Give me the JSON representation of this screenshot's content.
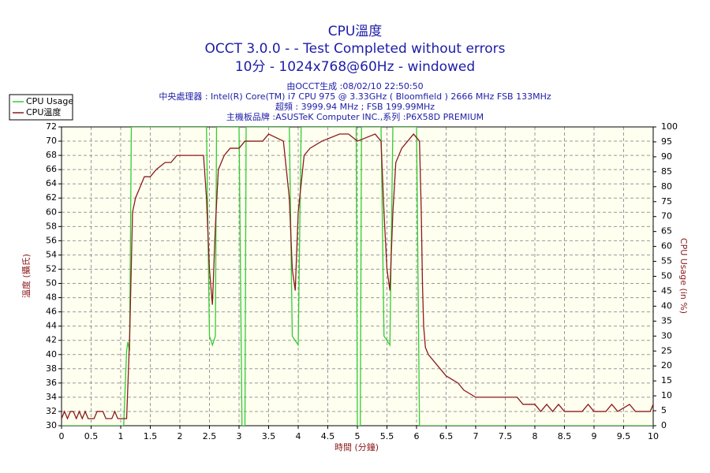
{
  "chart_data": {
    "type": "line",
    "title": "CPU溫度",
    "subtitle": [
      "OCCT 3.0.0 -  - Test Completed without errors",
      "10分 - 1024x768@60Hz - windowed"
    ],
    "info": [
      "由OCCT生成 :08/02/10 22:50:50",
      "中央處理器 : Intel(R) Core(TM) i7 CPU 975 @ 3.33GHz ( Bloomfield ) 2666 MHz FSB 133MHz",
      "超頻 : 3999.94 MHz ; FSB 199.99MHz",
      "主機板品牌 :ASUSTeK Computer INC.,系列 :P6X58D PREMIUM"
    ],
    "x_label": "時間 (分鐘)",
    "y_label": "溫度 (攝氏)",
    "y2_label": "CPU Usage (in %)",
    "xlim": [
      0,
      10
    ],
    "xticks": [
      0,
      0.5,
      1,
      1.5,
      2,
      2.5,
      3,
      3.5,
      4,
      4.5,
      5,
      5.5,
      6,
      6.5,
      7,
      7.5,
      8,
      8.5,
      9,
      9.5,
      10
    ],
    "ylim": [
      30,
      72
    ],
    "yticks": [
      30,
      32,
      34,
      36,
      38,
      40,
      42,
      44,
      46,
      48,
      50,
      52,
      54,
      56,
      58,
      60,
      62,
      64,
      66,
      68,
      70,
      72
    ],
    "y2lim": [
      0,
      100
    ],
    "y2ticks": [
      0,
      5,
      10,
      15,
      20,
      25,
      30,
      35,
      40,
      45,
      50,
      55,
      60,
      65,
      70,
      75,
      80,
      85,
      90,
      95,
      100
    ],
    "grid": true,
    "series": [
      {
        "name": "CPU Usage",
        "color": "#33cc33",
        "axis": "y2",
        "x": [
          0,
          1.05,
          1.1,
          1.12,
          1.15,
          1.18,
          2.45,
          2.5,
          2.55,
          2.6,
          2.62,
          3.0,
          3.05,
          3.1,
          3.12,
          3.85,
          3.9,
          4.0,
          4.05,
          4.98,
          5.0,
          5.05,
          5.07,
          5.4,
          5.45,
          5.55,
          5.6,
          6.0,
          6.05,
          10
        ],
        "values": [
          0,
          0,
          25,
          28,
          25,
          100,
          100,
          30,
          27,
          30,
          100,
          100,
          0,
          0,
          100,
          100,
          30,
          27,
          100,
          100,
          0,
          0,
          100,
          100,
          30,
          27,
          100,
          100,
          0,
          0
        ]
      },
      {
        "name": "CPU溫度",
        "color": "#8b1a1a",
        "x": [
          0,
          0.05,
          0.1,
          0.15,
          0.2,
          0.25,
          0.3,
          0.35,
          0.4,
          0.45,
          0.55,
          0.6,
          0.7,
          0.75,
          0.85,
          0.9,
          0.95,
          1.1,
          1.15,
          1.2,
          1.25,
          1.3,
          1.35,
          1.4,
          1.5,
          1.6,
          1.75,
          1.85,
          1.95,
          2.4,
          2.45,
          2.5,
          2.55,
          2.6,
          2.65,
          2.75,
          2.85,
          3.0,
          3.1,
          3.4,
          3.5,
          3.75,
          3.85,
          3.9,
          3.95,
          4.0,
          4.1,
          4.2,
          4.4,
          4.7,
          4.85,
          5.0,
          5.3,
          5.4,
          5.45,
          5.5,
          5.55,
          5.6,
          5.65,
          5.75,
          5.85,
          5.95,
          6.05,
          6.08,
          6.1,
          6.12,
          6.15,
          6.2,
          6.3,
          6.4,
          6.5,
          6.7,
          6.8,
          7.0,
          7.7,
          7.8,
          8.0,
          8.1,
          8.2,
          8.3,
          8.4,
          8.5,
          8.8,
          8.9,
          9.0,
          9.2,
          9.3,
          9.4,
          9.6,
          9.7,
          9.95,
          10
        ],
        "values": [
          31,
          32,
          31,
          32,
          32,
          31,
          32,
          31,
          32,
          31,
          31,
          32,
          32,
          31,
          31,
          32,
          31,
          31,
          42,
          60,
          62,
          63,
          64,
          65,
          65,
          66,
          67,
          67,
          68,
          68,
          62,
          52,
          47,
          58,
          66,
          68,
          69,
          69,
          70,
          70,
          71,
          70,
          62,
          52,
          49,
          60,
          68,
          69,
          70,
          71,
          71,
          70,
          71,
          70,
          60,
          52,
          49,
          60,
          67,
          69,
          70,
          71,
          70,
          60,
          50,
          44,
          41,
          40,
          39,
          38,
          37,
          36,
          35,
          34,
          34,
          33,
          33,
          32,
          33,
          32,
          33,
          32,
          32,
          33,
          32,
          32,
          33,
          32,
          33,
          32,
          32,
          33
        ]
      }
    ]
  }
}
